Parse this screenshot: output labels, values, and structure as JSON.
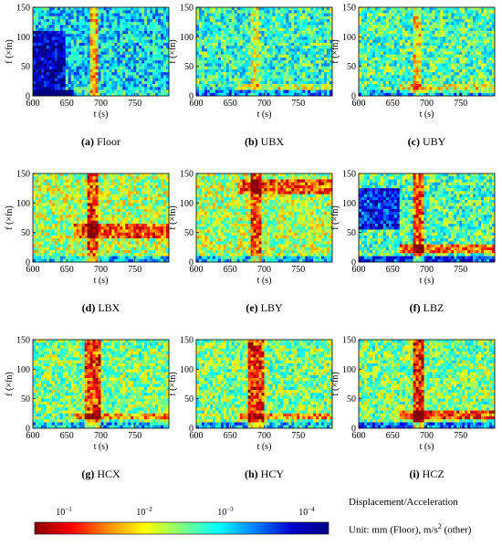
{
  "chart_data": {
    "type": "heatmap",
    "xlabel": "t (s)",
    "ylabel": "f (×fn)",
    "xticks": [
      600,
      650,
      700,
      750
    ],
    "yticks": [
      0,
      50,
      100,
      150
    ],
    "xlim": [
      600,
      800
    ],
    "ylim": [
      0,
      150
    ],
    "grid": false,
    "panels": [
      {
        "tag": "(a)",
        "name": "Floor",
        "base": 0.35,
        "hot_low": 0.55,
        "hot_band": [
          0,
          8
        ],
        "cold_top": [
          0,
          110,
          650
        ],
        "vband": [
          685,
          695,
          0.55
        ]
      },
      {
        "tag": "(b)",
        "name": "UBX",
        "base": 0.42,
        "hot_low": 0.25,
        "hot_band": [
          10,
          20
        ],
        "cold_top": [
          0,
          0,
          0
        ],
        "vband": [
          680,
          692,
          0.25
        ]
      },
      {
        "tag": "(c)",
        "name": "UBY",
        "base": 0.45,
        "hot_low": 0.25,
        "hot_band": [
          5,
          20
        ],
        "cold_top": [
          0,
          0,
          0
        ],
        "vband": [
          680,
          692,
          0.3
        ]
      },
      {
        "tag": "(d)",
        "name": "LBX",
        "base": 0.55,
        "hot_low": 0.35,
        "hot_band": [
          40,
          65
        ],
        "cold_top": [
          0,
          0,
          0
        ],
        "vband": [
          680,
          695,
          0.45
        ]
      },
      {
        "tag": "(e)",
        "name": "LBY",
        "base": 0.55,
        "hot_low": 0.35,
        "hot_band": [
          115,
          140
        ],
        "cold_top": [
          0,
          0,
          0
        ],
        "vband": [
          680,
          695,
          0.45
        ]
      },
      {
        "tag": "(f)",
        "name": "LBZ",
        "base": 0.45,
        "hot_low": 0.45,
        "hot_band": [
          15,
          30
        ],
        "cold_top": [
          55,
          125,
          660
        ],
        "vband": [
          680,
          695,
          0.55
        ]
      },
      {
        "tag": "(g)",
        "name": "HCX",
        "base": 0.5,
        "hot_low": 0.3,
        "hot_band": [
          15,
          25
        ],
        "cold_top": [
          0,
          0,
          0
        ],
        "vband": [
          678,
          698,
          0.55
        ]
      },
      {
        "tag": "(h)",
        "name": "HCY",
        "base": 0.5,
        "hot_low": 0.3,
        "hot_band": [
          15,
          25
        ],
        "cold_top": [
          0,
          0,
          0
        ],
        "vband": [
          678,
          698,
          0.55
        ]
      },
      {
        "tag": "(i)",
        "name": "HCZ",
        "base": 0.5,
        "hot_low": 0.45,
        "hot_band": [
          15,
          30
        ],
        "cold_top": [
          0,
          0,
          0
        ],
        "vband": [
          680,
          697,
          0.6
        ]
      }
    ],
    "colorbar": {
      "labels": [
        {
          "base": "10",
          "exp": "−1"
        },
        {
          "base": "10",
          "exp": "−2"
        },
        {
          "base": "10",
          "exp": "−3"
        },
        {
          "base": "10",
          "exp": "−4"
        }
      ],
      "colors": [
        "#8b0000",
        "#ff0000",
        "#ff8c00",
        "#ffff00",
        "#7fff7f",
        "#00ffff",
        "#0080ff",
        "#0000cd",
        "#00008b"
      ]
    }
  },
  "colorbar_title": "Displacement/Acceleration",
  "colorbar_unit_prefix": "Unit: mm (Floor), m/s",
  "colorbar_unit_exp": "2",
  "colorbar_unit_suffix": " (other)"
}
